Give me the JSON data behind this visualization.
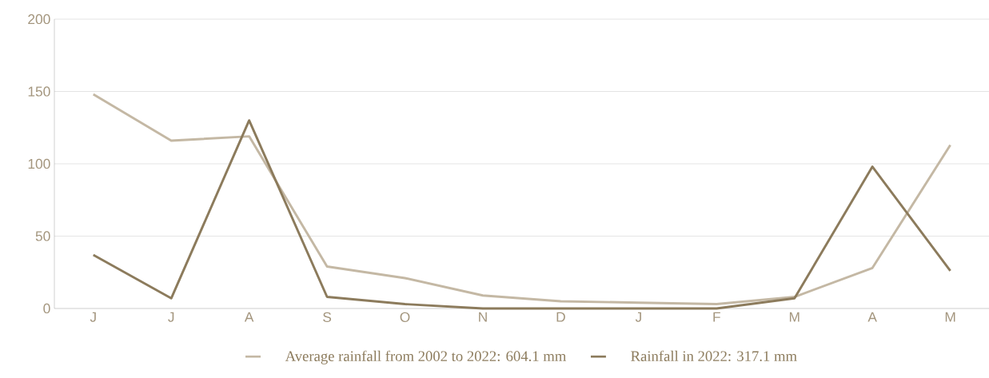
{
  "chart_data": {
    "type": "line",
    "categories": [
      "J",
      "J",
      "A",
      "S",
      "O",
      "N",
      "D",
      "J",
      "F",
      "M",
      "A",
      "M"
    ],
    "ylim": [
      0,
      200
    ],
    "yticks": [
      0,
      50,
      100,
      150,
      200
    ],
    "grid": "y",
    "legend": "bottom",
    "marker": "none",
    "line_style": "solid",
    "series": [
      {
        "name": "Average rainfall from 2002 to 2022: 604.1 mm",
        "color": "#c4b8a4",
        "values": [
          148,
          116,
          119,
          29,
          21,
          9,
          5,
          4,
          3,
          8,
          28,
          113
        ]
      },
      {
        "name": "Rainfall in 2022: 317.1 mm",
        "color": "#8c7b5c",
        "values": [
          37,
          7,
          130,
          8,
          3,
          0,
          0,
          0,
          0,
          7,
          98,
          26
        ]
      }
    ]
  }
}
